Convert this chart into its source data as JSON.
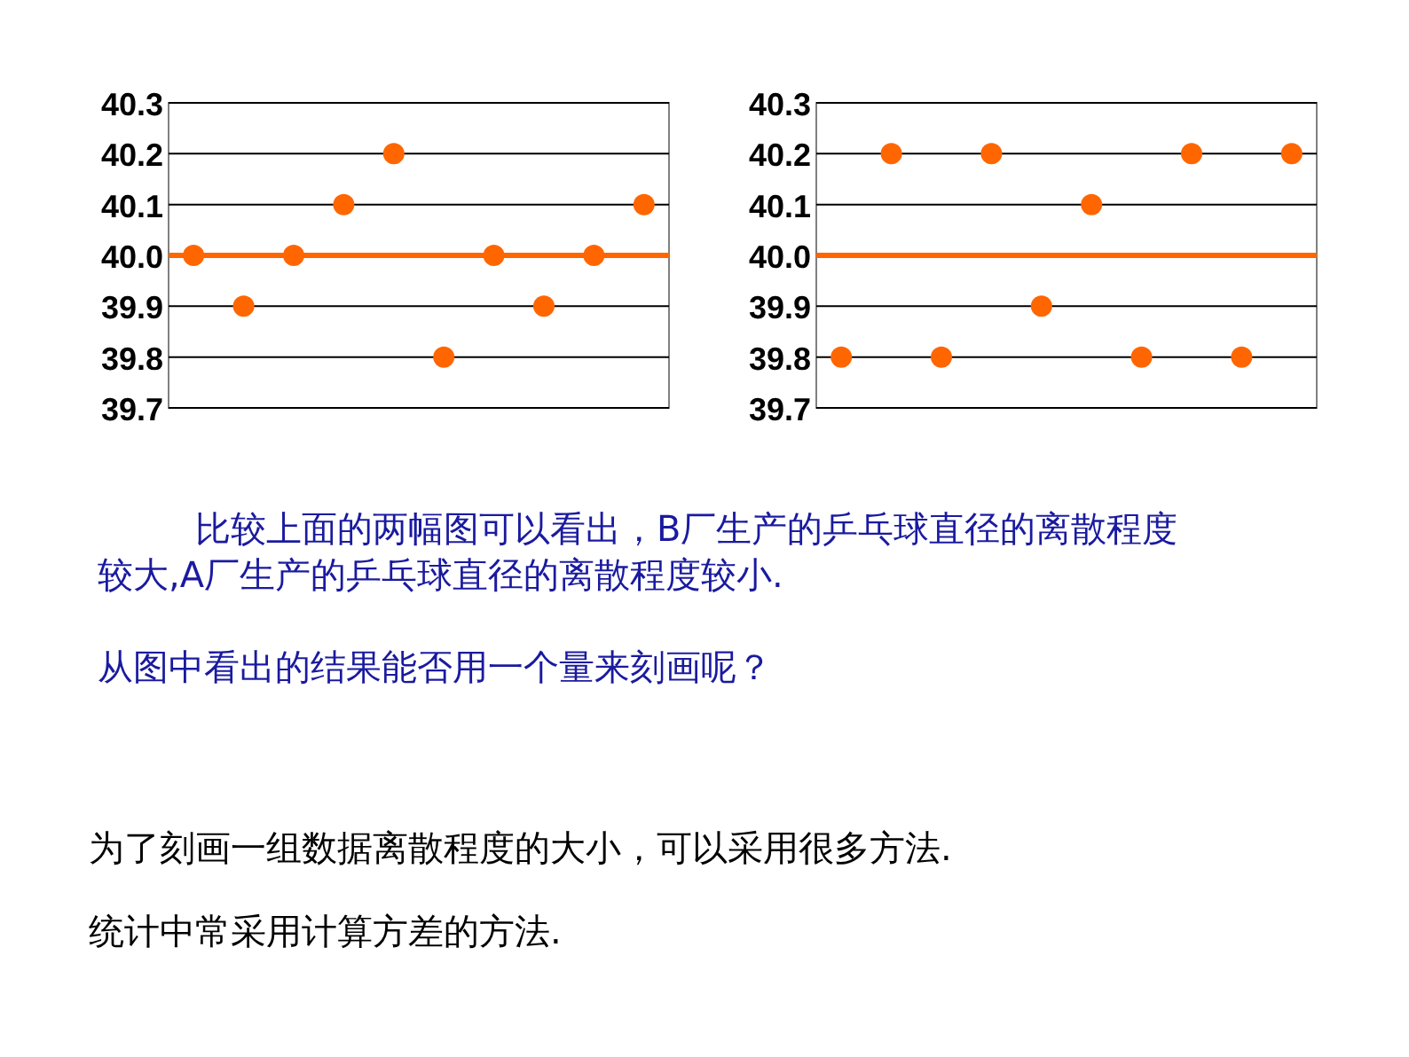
{
  "chart_data": [
    {
      "type": "scatter",
      "categories": [
        null,
        null,
        null,
        null,
        null,
        null,
        null,
        null,
        null,
        null
      ],
      "values": [
        40.0,
        39.9,
        40.0,
        40.1,
        40.2,
        39.8,
        40.0,
        39.9,
        40.0,
        40.1
      ],
      "color": "#ff6600",
      "marker": "circle",
      "ylim": [
        39.7,
        40.3
      ],
      "yticks": [
        {
          "value": 39.7,
          "label": "39.7"
        },
        {
          "value": 39.8,
          "label": "39.8"
        },
        {
          "value": 39.9,
          "label": "39.9"
        },
        {
          "value": 40.0,
          "label": "40.0"
        },
        {
          "value": 40.1,
          "label": "40.1"
        },
        {
          "value": 40.2,
          "label": "40.2"
        },
        {
          "value": 40.3,
          "label": "40.3"
        }
      ],
      "grid": "y",
      "tick_labels": "y",
      "ref_lines": [
        {
          "axis": "y",
          "value": 40.0,
          "color": "#ff6600"
        }
      ]
    },
    {
      "type": "scatter",
      "categories": [
        null,
        null,
        null,
        null,
        null,
        null,
        null,
        null,
        null,
        null
      ],
      "values": [
        39.8,
        40.2,
        39.8,
        40.2,
        39.9,
        40.1,
        39.8,
        40.2,
        39.8,
        40.2
      ],
      "color": "#ff6600",
      "marker": "circle",
      "ylim": [
        39.7,
        40.3
      ],
      "yticks": [
        {
          "value": 39.7,
          "label": "39.7"
        },
        {
          "value": 39.8,
          "label": "39.8"
        },
        {
          "value": 39.9,
          "label": "39.9"
        },
        {
          "value": 40.0,
          "label": "40.0"
        },
        {
          "value": 40.1,
          "label": "40.1"
        },
        {
          "value": 40.2,
          "label": "40.2"
        },
        {
          "value": 40.3,
          "label": "40.3"
        }
      ],
      "grid": "y",
      "tick_labels": "y",
      "ref_lines": [
        {
          "axis": "y",
          "value": 40.0,
          "color": "#ff6600"
        }
      ]
    },
    {
      "type": "other",
      "annotations": [
        "比较上面的两幅图可以看出，B厂生产的乒乓球直径的离散程度较大,A厂生产的乒乓球直径的离散程度较小.",
        "从图中看出的结果能否用一个量来刻画呢？",
        "为了刻画一组数据离散程度的大小，可以采用很多方法.",
        "统计中常采用计算方差的方法."
      ]
    }
  ]
}
